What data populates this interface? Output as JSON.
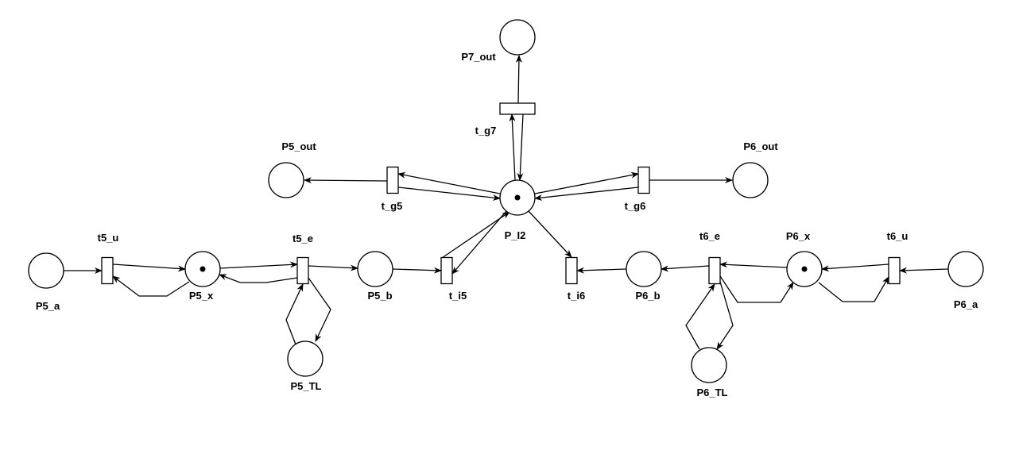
{
  "places": [
    {
      "id": "P7_out",
      "label": "P7_out",
      "tokens": 0
    },
    {
      "id": "P5_out",
      "label": "P5_out",
      "tokens": 0
    },
    {
      "id": "P6_out",
      "label": "P6_out",
      "tokens": 0
    },
    {
      "id": "P_I2",
      "label": "P_I2",
      "tokens": 1
    },
    {
      "id": "P5_a",
      "label": "P5_a",
      "tokens": 0
    },
    {
      "id": "P5_x",
      "label": "P5_x",
      "tokens": 1
    },
    {
      "id": "P5_b",
      "label": "P5_b",
      "tokens": 0
    },
    {
      "id": "P5_TL",
      "label": "P5_TL",
      "tokens": 0
    },
    {
      "id": "P6_b",
      "label": "P6_b",
      "tokens": 0
    },
    {
      "id": "P6_x",
      "label": "P6_x",
      "tokens": 1
    },
    {
      "id": "P6_a",
      "label": "P6_a",
      "tokens": 0
    },
    {
      "id": "P6_TL",
      "label": "P6_TL",
      "tokens": 0
    }
  ],
  "transitions": [
    {
      "id": "t_g7",
      "label": "t_g7"
    },
    {
      "id": "t_g5",
      "label": "t_g5"
    },
    {
      "id": "t_g6",
      "label": "t_g6"
    },
    {
      "id": "t5_u",
      "label": "t5_u"
    },
    {
      "id": "t5_e",
      "label": "t5_e"
    },
    {
      "id": "t_i5",
      "label": "t_i5"
    },
    {
      "id": "t_i6",
      "label": "t_i6"
    },
    {
      "id": "t6_e",
      "label": "t6_e"
    },
    {
      "id": "t6_u",
      "label": "t6_u"
    }
  ],
  "arcs": [
    {
      "from": "t_g7",
      "to": "P7_out"
    },
    {
      "from": "P_I2",
      "to": "t_g7"
    },
    {
      "from": "t_g7",
      "to": "P_I2"
    },
    {
      "from": "t_g5",
      "to": "P5_out"
    },
    {
      "from": "P_I2",
      "to": "t_g5"
    },
    {
      "from": "t_g5",
      "to": "P_I2"
    },
    {
      "from": "t_g6",
      "to": "P6_out"
    },
    {
      "from": "P_I2",
      "to": "t_g6"
    },
    {
      "from": "t_g6",
      "to": "P_I2"
    },
    {
      "from": "P5_a",
      "to": "t5_u"
    },
    {
      "from": "t5_u",
      "to": "P5_x"
    },
    {
      "from": "P5_x",
      "to": "t5_u"
    },
    {
      "from": "P5_x",
      "to": "t5_e"
    },
    {
      "from": "t5_e",
      "to": "P5_x"
    },
    {
      "from": "t5_e",
      "to": "P5_b"
    },
    {
      "from": "t5_e",
      "to": "P5_TL"
    },
    {
      "from": "P5_TL",
      "to": "t5_e"
    },
    {
      "from": "P5_b",
      "to": "t_i5"
    },
    {
      "from": "P_I2",
      "to": "t_i5"
    },
    {
      "from": "t_i5",
      "to": "P_I2"
    },
    {
      "from": "P_I2",
      "to": "t_i6"
    },
    {
      "from": "P6_b",
      "to": "t_i6"
    },
    {
      "from": "t6_e",
      "to": "P6_b"
    },
    {
      "from": "P6_x",
      "to": "t6_e"
    },
    {
      "from": "t6_e",
      "to": "P6_x"
    },
    {
      "from": "t6_e",
      "to": "P6_TL"
    },
    {
      "from": "P6_TL",
      "to": "t6_e"
    },
    {
      "from": "P6_a",
      "to": "t6_u"
    },
    {
      "from": "t6_u",
      "to": "P6_x"
    },
    {
      "from": "P6_x",
      "to": "t6_u"
    }
  ]
}
